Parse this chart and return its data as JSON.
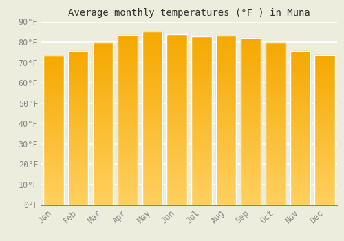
{
  "title": "Average monthly temperatures (°F ) in Muna",
  "months": [
    "Jan",
    "Feb",
    "Mar",
    "Apr",
    "May",
    "Jun",
    "Jul",
    "Aug",
    "Sep",
    "Oct",
    "Nov",
    "Dec"
  ],
  "values": [
    73.4,
    75.6,
    79.7,
    83.5,
    85.1,
    83.8,
    82.8,
    83.1,
    82.2,
    79.7,
    75.7,
    73.6
  ],
  "bar_color_top": "#F5A800",
  "bar_color_bottom": "#FFD060",
  "bar_edge_color": "#FFFFFF",
  "ylim": [
    0,
    90
  ],
  "yticks": [
    0,
    10,
    20,
    30,
    40,
    50,
    60,
    70,
    80,
    90
  ],
  "ytick_labels": [
    "0°F",
    "10°F",
    "20°F",
    "30°F",
    "40°F",
    "50°F",
    "60°F",
    "70°F",
    "80°F",
    "90°F"
  ],
  "background_color": "#ededde",
  "grid_color": "#ffffff",
  "title_fontsize": 10,
  "tick_fontsize": 8.5,
  "font_family": "monospace"
}
